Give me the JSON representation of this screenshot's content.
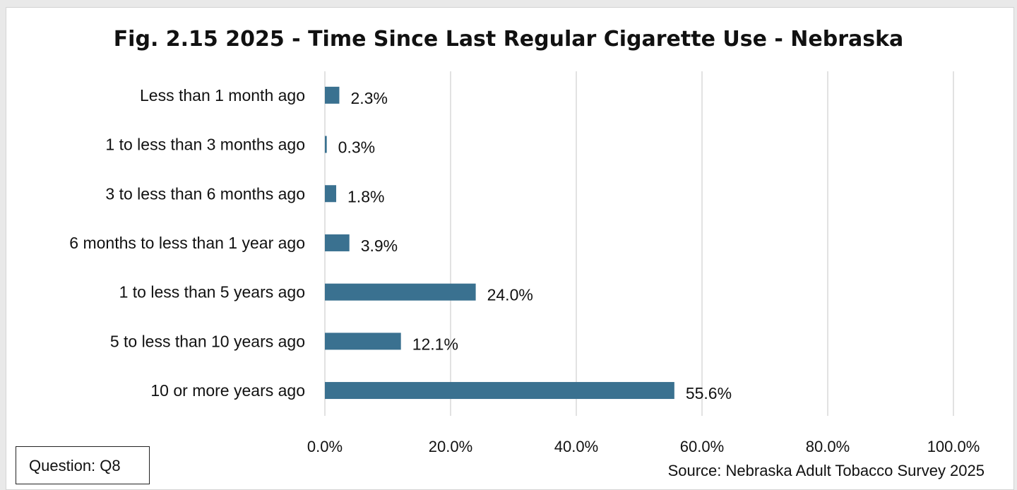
{
  "chart_data": {
    "type": "bar",
    "orientation": "horizontal",
    "title": "Fig. 2.15 2025 - Time Since Last Regular Cigarette Use - Nebraska",
    "categories": [
      "Less than 1 month ago",
      "1 to less than 3 months ago",
      "3 to less than 6 months ago",
      "6 months to less than 1 year ago",
      "1 to less than 5 years ago",
      "5 to less than 10 years ago",
      "10 or more years ago"
    ],
    "values": [
      2.3,
      0.3,
      1.8,
      3.9,
      24.0,
      12.1,
      55.6
    ],
    "value_labels": [
      "2.3%",
      "0.3%",
      "1.8%",
      "3.9%",
      "24.0%",
      "12.1%",
      "55.6%"
    ],
    "xlim": [
      0,
      100
    ],
    "x_ticks": [
      "0.0%",
      "20.0%",
      "40.0%",
      "60.0%",
      "80.0%",
      "100.0%"
    ],
    "grid": true,
    "bar_color": "#3a7190",
    "grid_color": "#d9d9d9"
  },
  "question_label": "Question: Q8",
  "source_label": "Source: Nebraska Adult Tobacco Survey 2025"
}
